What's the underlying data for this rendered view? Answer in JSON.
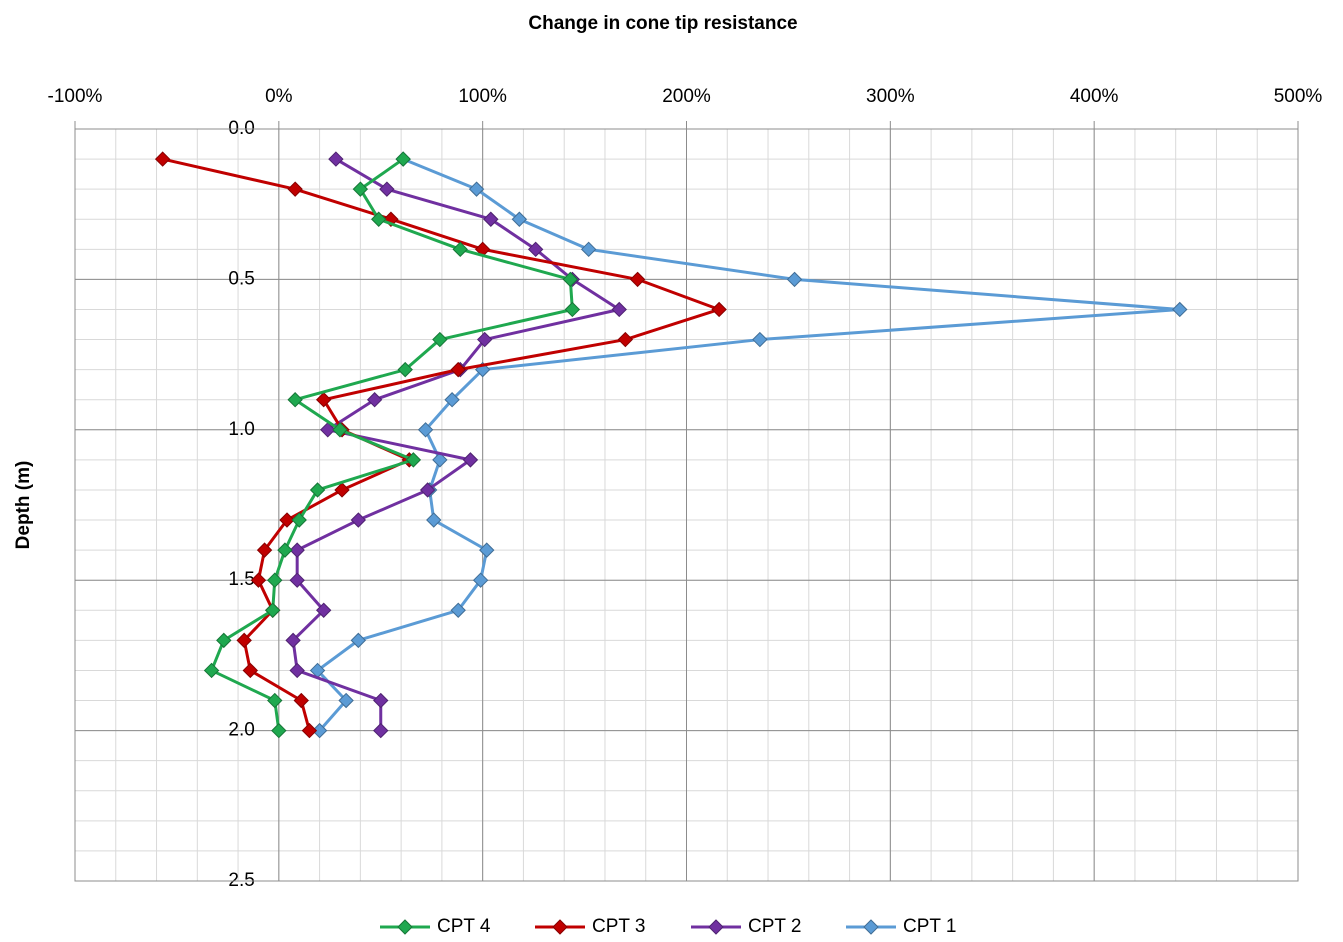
{
  "chart_data": {
    "type": "line",
    "title": "Change in cone tip resistance",
    "y_label": "Depth (m)",
    "y": [
      0.1,
      0.2,
      0.3,
      0.4,
      0.5,
      0.6,
      0.7,
      0.8,
      0.9,
      1.0,
      1.1,
      1.2,
      1.3,
      1.4,
      1.5,
      1.6,
      1.7,
      1.8,
      1.9,
      2.0
    ],
    "series": [
      {
        "name": "CPT 4",
        "color": "#1fa84f",
        "values": [
          61,
          40,
          49,
          89,
          143,
          144,
          79,
          62,
          8,
          30,
          66,
          19,
          10,
          3,
          -2,
          -3,
          -27,
          -33,
          -2,
          0
        ]
      },
      {
        "name": "CPT 3",
        "color": "#c00000",
        "values": [
          -57,
          8,
          55,
          100,
          176,
          216,
          170,
          88,
          22,
          31,
          64,
          31,
          4,
          -7,
          -10,
          -3,
          -17,
          -14,
          11,
          15
        ]
      },
      {
        "name": "CPT 2",
        "color": "#7030a0",
        "values": [
          28,
          53,
          104,
          126,
          144,
          167,
          101,
          89,
          47,
          24,
          94,
          73,
          39,
          9,
          9,
          22,
          7,
          9,
          50,
          50
        ]
      },
      {
        "name": "CPT 1",
        "color": "#5b9bd5",
        "values": [
          61,
          97,
          118,
          152,
          253,
          442,
          236,
          100,
          85,
          72,
          79,
          74,
          76,
          102,
          99,
          88,
          39,
          19,
          33,
          20
        ]
      }
    ],
    "xlim": [
      -100,
      500
    ],
    "xticks": [
      {
        "value": -100,
        "label": "-100%"
      },
      {
        "value": 0,
        "label": "0%"
      },
      {
        "value": 100,
        "label": "100%"
      },
      {
        "value": 200,
        "label": "200%"
      },
      {
        "value": 300,
        "label": "300%"
      },
      {
        "value": 400,
        "label": "400%"
      },
      {
        "value": 500,
        "label": "500%"
      }
    ],
    "ylim": [
      0,
      2.5
    ],
    "y_reversed": true,
    "yticks": [
      {
        "value": 0,
        "label": "0.0"
      },
      0.5,
      {
        "value": 1,
        "label": "1.0"
      },
      1.5,
      {
        "value": 2,
        "label": "2.0"
      },
      2.5
    ],
    "grid": true,
    "x_minor_step": 20,
    "y_minor_step": 0.1,
    "legend": "bottom"
  }
}
